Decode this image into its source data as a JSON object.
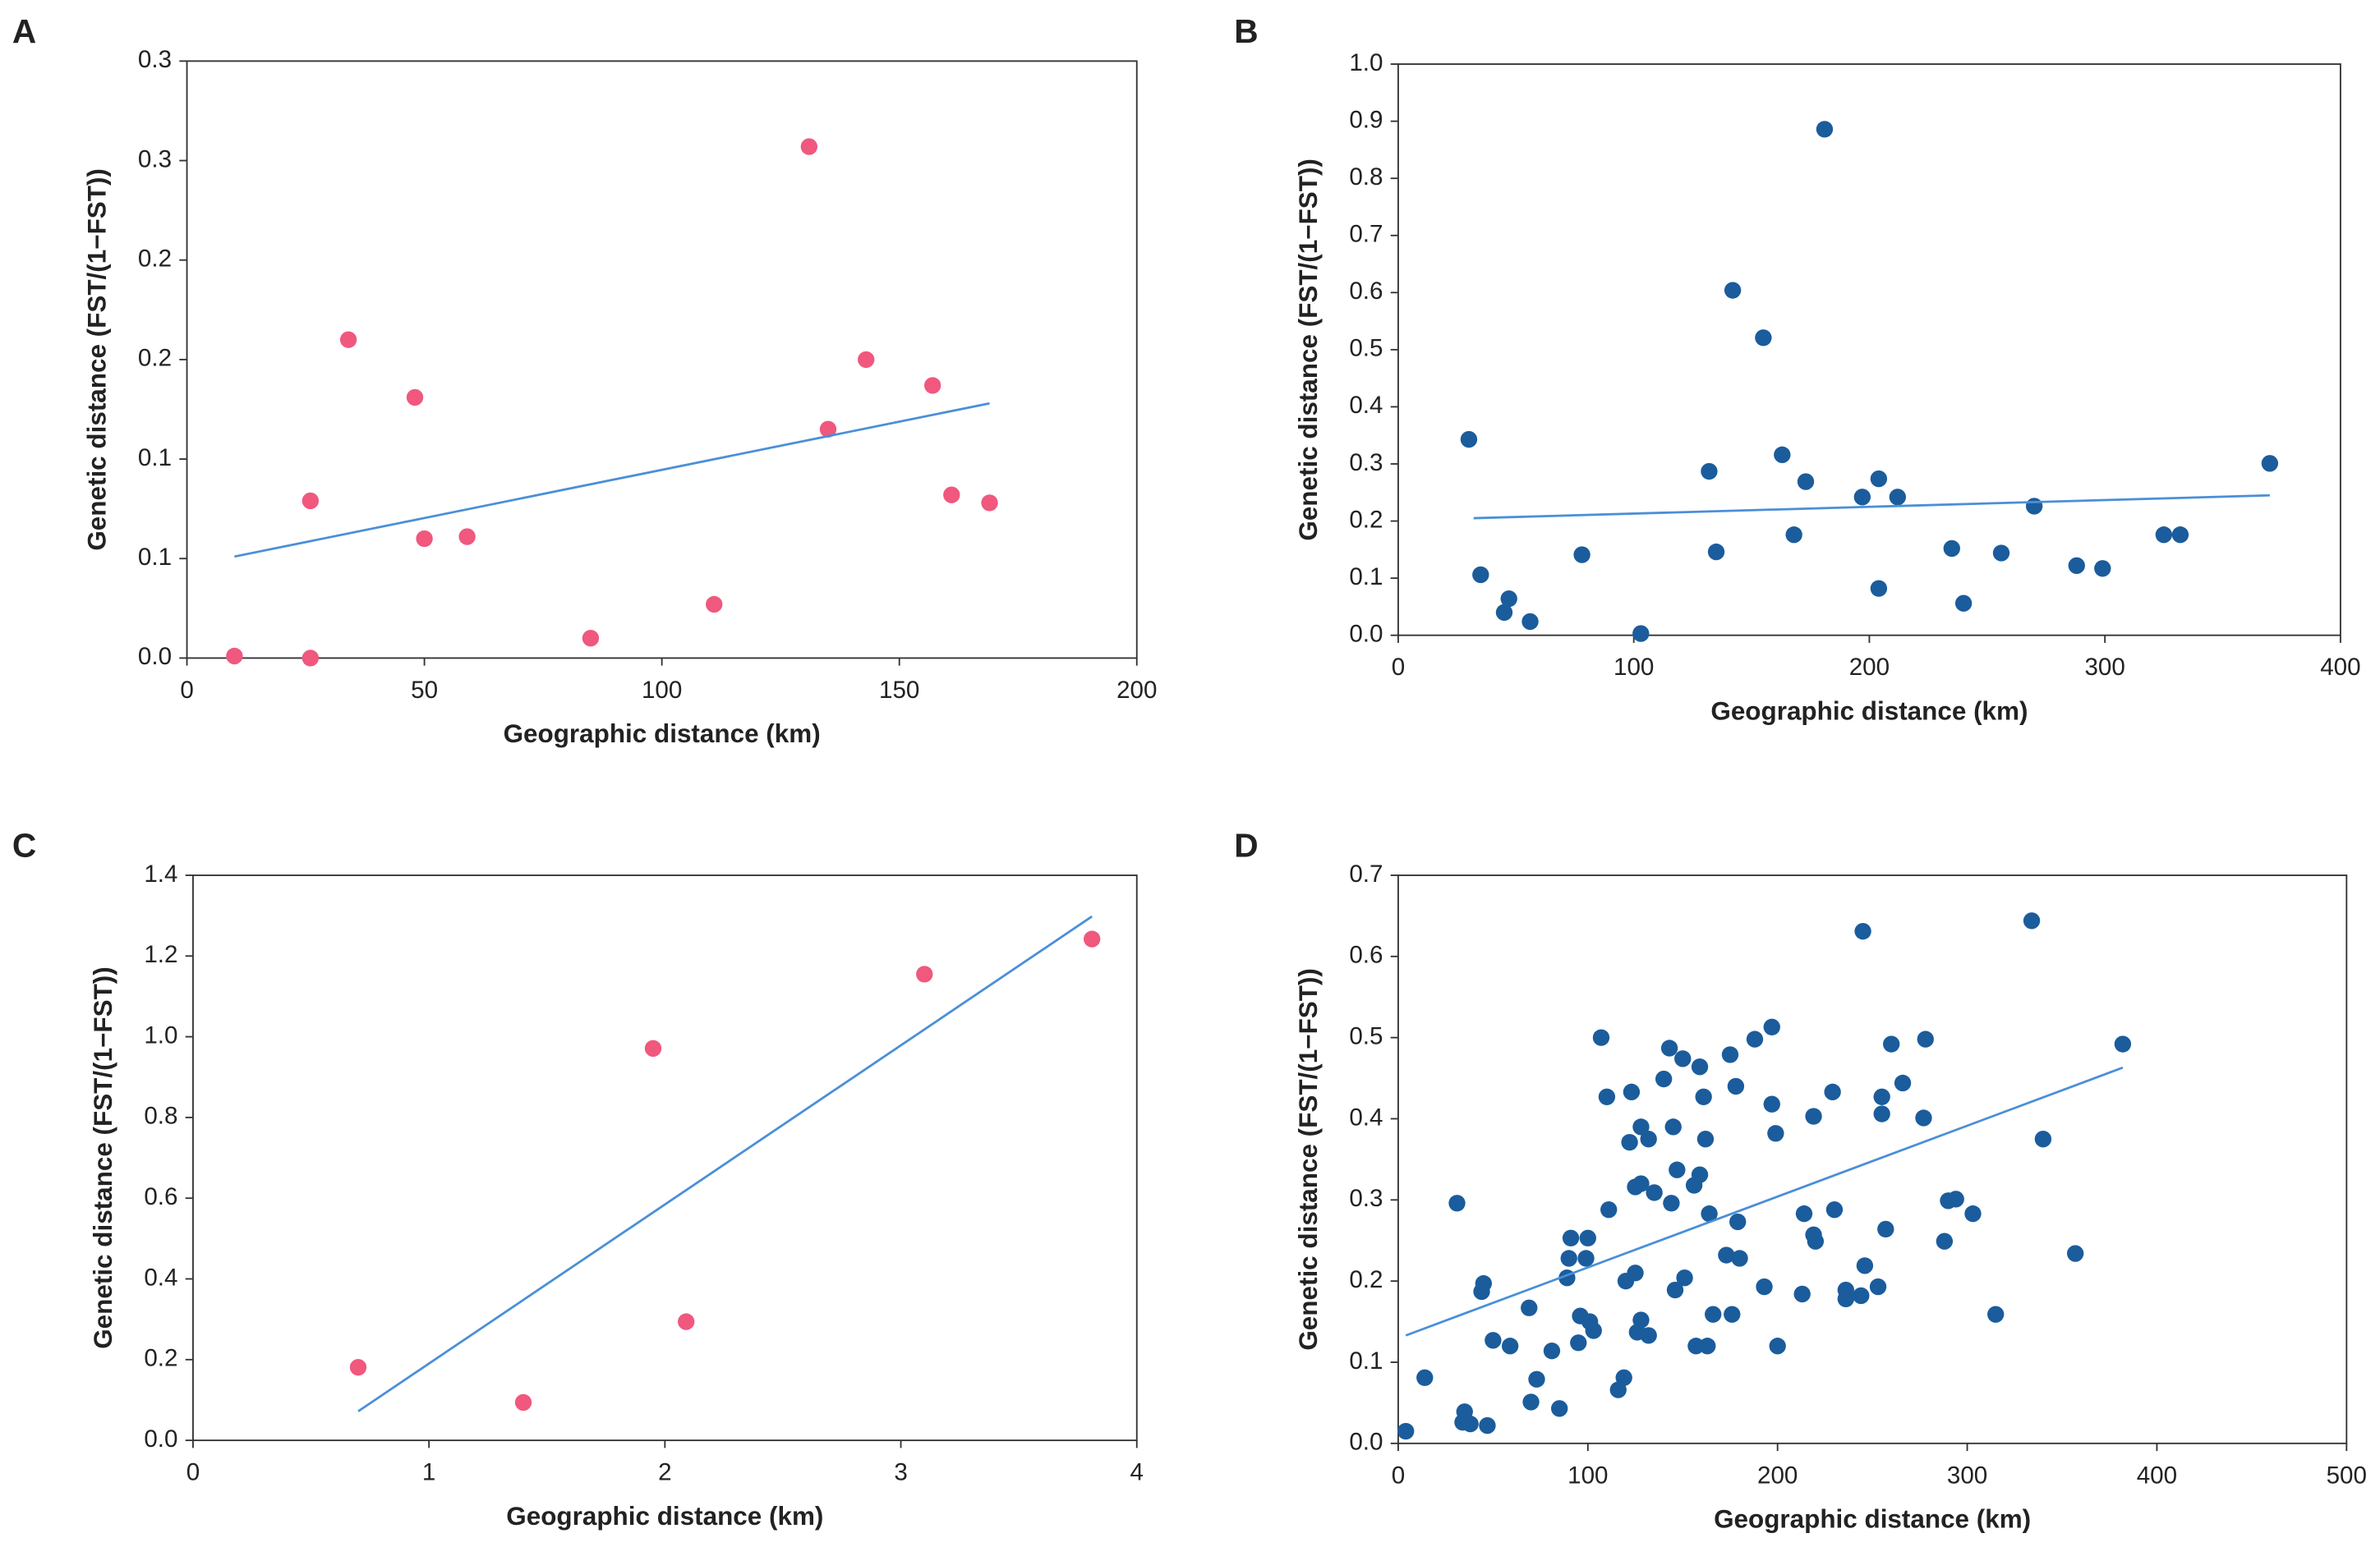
{
  "chart_data": [
    {
      "panel": "A",
      "type": "scatter",
      "x_label": "Geographic distance (km)",
      "y_label": "Genetic distance (FST/(1−FST))",
      "x": [
        10,
        26,
        26,
        34,
        48,
        50,
        59,
        85,
        111,
        131,
        135,
        143,
        157,
        161,
        169
      ],
      "values": [
        0.001,
        0,
        0.079,
        0.16,
        0.131,
        0.06,
        0.061,
        0.01,
        0.027,
        0.257,
        0.115,
        0.15,
        0.137,
        0.082,
        0.078
      ],
      "color": "#f0587e",
      "xlim": [
        0,
        200
      ],
      "xticks": [
        0,
        50,
        100,
        150,
        200
      ],
      "ylim": [
        0,
        0.3
      ],
      "yticks": [
        {
          "value": 0,
          "label": "0.0"
        },
        {
          "value": 0.05,
          "label": "0.1"
        },
        0.1,
        {
          "value": 0.15,
          "label": "0.2"
        },
        0.2,
        {
          "value": 0.25,
          "label": "0.3"
        },
        0.3
      ],
      "trendline": {
        "x": [
          10,
          169
        ],
        "y": [
          0.051,
          0.128
        ],
        "color": "#4a8fd8"
      }
    },
    {
      "panel": "B",
      "type": "scatter",
      "x_label": "Geographic distance (km)",
      "y_label": "Genetic distance (FST/(1−FST))",
      "x": [
        30,
        35,
        47,
        45,
        56,
        78,
        103,
        132,
        135,
        142,
        155,
        163,
        168,
        173,
        181,
        197,
        204,
        204,
        212,
        235,
        240,
        256,
        270,
        288,
        299,
        325,
        332,
        370
      ],
      "values": [
        0.343,
        0.106,
        0.064,
        0.04,
        0.024,
        0.141,
        0.003,
        0.287,
        0.146,
        0.604,
        0.521,
        0.316,
        0.176,
        0.269,
        0.886,
        0.242,
        0.274,
        0.082,
        0.242,
        0.152,
        0.056,
        0.144,
        0.226,
        0.122,
        0.117,
        0.176,
        0.176,
        0.301
      ],
      "color": "#1b5c9c",
      "xlim": [
        0,
        400
      ],
      "xticks": [
        0,
        100,
        200,
        300,
        400
      ],
      "ylim": [
        0,
        1
      ],
      "yticks": [
        {
          "value": 0,
          "label": "0.0"
        },
        0.1,
        0.2,
        0.3,
        0.4,
        0.5,
        0.6,
        0.7,
        0.8,
        0.9,
        {
          "value": 1,
          "label": "1.0"
        }
      ],
      "trendline": {
        "x": [
          32,
          370
        ],
        "y": [
          0.205,
          0.245
        ],
        "color": "#4a8fd8"
      }
    },
    {
      "panel": "C",
      "type": "scatter",
      "x_label": "Geographic distance (km)",
      "y_label": "Genetic distance (FST/(1−FST))",
      "x": [
        0.7,
        1.4,
        1.95,
        2.09,
        3.1,
        3.81
      ],
      "values": [
        0.181,
        0.094,
        0.971,
        0.294,
        1.155,
        1.242
      ],
      "color": "#f0587e",
      "xlim": [
        0,
        4
      ],
      "xticks": [
        0,
        1,
        2,
        3,
        4
      ],
      "ylim": [
        0,
        1.4
      ],
      "yticks": [
        {
          "value": 0,
          "label": "0.0"
        },
        0.2,
        0.4,
        0.6,
        0.8,
        {
          "value": 1,
          "label": "1.0"
        },
        1.2,
        1.4
      ],
      "trendline": {
        "x": [
          0.7,
          3.81
        ],
        "y": [
          0.072,
          1.298
        ],
        "color": "#4a8fd8"
      }
    },
    {
      "panel": "D",
      "type": "scatter",
      "x_label": "Geographic distance (km)",
      "y_label": "Genetic distance (FST/(1−FST))",
      "x": [
        4,
        14,
        31,
        34,
        35,
        38,
        44,
        45,
        47,
        50,
        59,
        69,
        70,
        73,
        81,
        85,
        89,
        90,
        91,
        95,
        96,
        99,
        100,
        101,
        103,
        107,
        110,
        111,
        116,
        119,
        120,
        122,
        123,
        125,
        125,
        126,
        128,
        128,
        128,
        132,
        132,
        135,
        140,
        143,
        144,
        145,
        146,
        147,
        150,
        151,
        156,
        157,
        159,
        159,
        161,
        162,
        163,
        164,
        166,
        173,
        175,
        176,
        178,
        179,
        180,
        188,
        193,
        197,
        197,
        199,
        200,
        213,
        214,
        219,
        219,
        220,
        229,
        230,
        236,
        236,
        245,
        244,
        246,
        253,
        255,
        255,
        257,
        260,
        266,
        277,
        278,
        288,
        290,
        294,
        303,
        315,
        334,
        340,
        357,
        382
      ],
      "values": [
        0.015,
        0.081,
        0.296,
        0.026,
        0.039,
        0.024,
        0.187,
        0.197,
        0.022,
        0.127,
        0.12,
        0.167,
        0.051,
        0.079,
        0.114,
        0.043,
        0.204,
        0.228,
        0.253,
        0.124,
        0.157,
        0.228,
        0.253,
        0.15,
        0.139,
        0.5,
        0.427,
        0.288,
        0.066,
        0.081,
        0.2,
        0.371,
        0.433,
        0.316,
        0.21,
        0.137,
        0.39,
        0.32,
        0.152,
        0.375,
        0.133,
        0.309,
        0.449,
        0.487,
        0.296,
        0.39,
        0.189,
        0.337,
        0.474,
        0.204,
        0.318,
        0.12,
        0.464,
        0.331,
        0.427,
        0.375,
        0.12,
        0.283,
        0.159,
        0.232,
        0.479,
        0.159,
        0.44,
        0.273,
        0.228,
        0.498,
        0.193,
        0.513,
        0.418,
        0.382,
        0.12,
        0.184,
        0.283,
        0.257,
        0.403,
        0.249,
        0.433,
        0.288,
        0.189,
        0.178,
        0.631,
        0.182,
        0.219,
        0.193,
        0.427,
        0.406,
        0.264,
        0.492,
        0.444,
        0.401,
        0.498,
        0.249,
        0.299,
        0.301,
        0.283,
        0.159,
        0.644,
        0.375,
        0.234,
        0.492
      ],
      "color": "#1b5c9c",
      "xlim": [
        0,
        500
      ],
      "xticks": [
        0,
        100,
        200,
        300,
        400,
        500
      ],
      "ylim": [
        0,
        0.7
      ],
      "yticks": [
        {
          "value": 0,
          "label": "0.0"
        },
        0.1,
        0.2,
        0.3,
        0.4,
        0.5,
        0.6,
        0.7
      ],
      "trendline": {
        "x": [
          4,
          382
        ],
        "y": [
          0.133,
          0.463
        ],
        "color": "#4a8fd8"
      }
    }
  ]
}
